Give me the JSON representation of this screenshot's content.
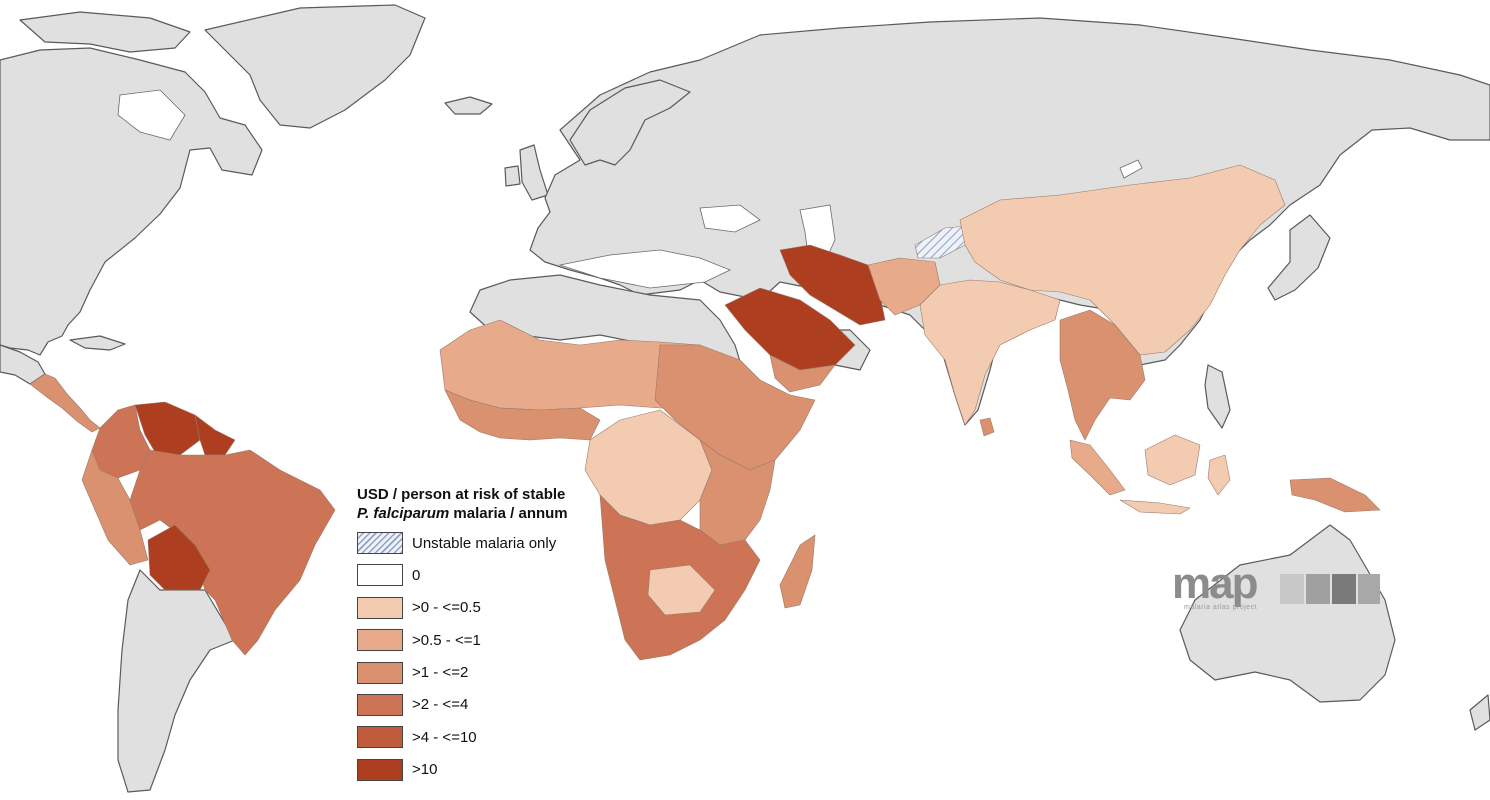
{
  "legend": {
    "title_line1": "USD / person at risk of stable",
    "title_line2_italic": "P. falciparum",
    "title_line2_rest": " malaria / annum",
    "items": [
      {
        "label": "Unstable malaria only",
        "color": "hatch"
      },
      {
        "label": "0",
        "color": "#ffffff"
      },
      {
        "label": ">0 - <=0.5",
        "color": "#f2cbb0"
      },
      {
        "label": ">0.5 - <=1",
        "color": "#e7aa8b"
      },
      {
        "label": ">1 - <=2",
        "color": "#d99170"
      },
      {
        "label": ">2 - <=4",
        "color": "#cc7455"
      },
      {
        "label": ">4 - <=10",
        "color": "#c05b3b"
      },
      {
        "label": ">10",
        "color": "#ae3e20"
      }
    ]
  },
  "logo": {
    "word": "map",
    "subtitle": "malaria atlas project",
    "tiles": [
      "#c8c8c8",
      "#a0a0a0",
      "#7a7a7a",
      "#a8a8a8"
    ]
  },
  "colors": {
    "land": "#e0e0e0",
    "coast": "#5a5a5a",
    "ocean": "#ffffff"
  },
  "regions": {
    "iran": "#ae3e20",
    "saudi_arabia": "#ae3e20",
    "venezuela": "#ae3e20",
    "bolivia": "#ae3e20",
    "guyana_suriname": "#ae3e20",
    "brazil": "#cc7455",
    "colombia": "#cc7455",
    "peru": "#d99170",
    "central_america": "#d99170",
    "yemen": "#d99170",
    "afghanistan_pakistan": "#e7aa8b",
    "india": "#f2cbb0",
    "china": "#f2cbb0",
    "southeast_asia": "#d99170",
    "indonesia": "#f2cbb0",
    "png": "#d99170",
    "tajikistan": "hatch",
    "sahel": "#e7aa8b",
    "west_africa": "#d99170",
    "sudan": "#d99170",
    "central_africa": "#f2cbb0",
    "east_africa": "#d99170",
    "southern_africa": "#cc7455",
    "madagascar": "#d99170"
  }
}
